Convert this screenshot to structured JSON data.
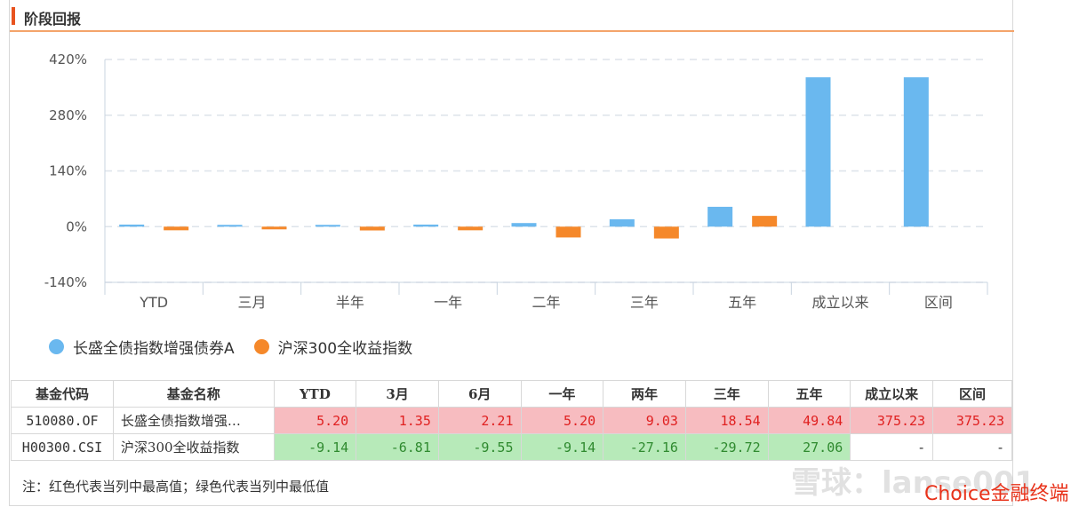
{
  "section_title": "阶段回报",
  "colors": {
    "fund": "#6ab8ef",
    "index": "#f5882a",
    "grid": "#dde3ea",
    "axis": "#c9d4e0"
  },
  "chart_data": {
    "type": "bar",
    "categories": [
      "YTD",
      "三月",
      "半年",
      "一年",
      "二年",
      "三年",
      "五年",
      "成立以来",
      "区间"
    ],
    "series": [
      {
        "name": "长盛全债指数增强债券A",
        "values": [
          5.2,
          1.35,
          2.21,
          5.2,
          9.03,
          18.54,
          49.84,
          375.23,
          375.23
        ]
      },
      {
        "name": "沪深300全收益指数",
        "values": [
          -9.14,
          -6.81,
          -9.55,
          -9.14,
          -27.16,
          -29.72,
          27.06,
          null,
          null
        ]
      }
    ],
    "y_ticks": [
      "420%",
      "280%",
      "140%",
      "0%",
      "-140%"
    ],
    "y_tick_values": [
      420,
      280,
      140,
      0,
      -140
    ],
    "ylim": [
      -140,
      420
    ],
    "grid": true,
    "legend_position": "bottom-left"
  },
  "table": {
    "headers": [
      "基金代码",
      "基金名称",
      "YTD",
      "3月",
      "6月",
      "一年",
      "两年",
      "三年",
      "五年",
      "成立以来",
      "区间"
    ],
    "rows": [
      {
        "code": "510080.OF",
        "name": "长盛全债指数增强…",
        "cells": [
          "5.20",
          "1.35",
          "2.21",
          "5.20",
          "9.03",
          "18.54",
          "49.84",
          "375.23",
          "375.23"
        ],
        "styles": [
          "high",
          "high",
          "high",
          "high",
          "high",
          "high",
          "high",
          "high",
          "high"
        ]
      },
      {
        "code": "H00300.CSI",
        "name": "沪深300全收益指数",
        "cells": [
          "-9.14",
          "-6.81",
          "-9.55",
          "-9.14",
          "-27.16",
          "-29.72",
          "27.06",
          "-",
          "-"
        ],
        "styles": [
          "low",
          "low",
          "low",
          "low",
          "low",
          "low",
          "low",
          "plain",
          "plain"
        ]
      }
    ]
  },
  "note": "注：红色代表当列中最高值；绿色代表当列中最低值",
  "watermark": "雪球：lanse001",
  "brand": "Choice金融终端"
}
